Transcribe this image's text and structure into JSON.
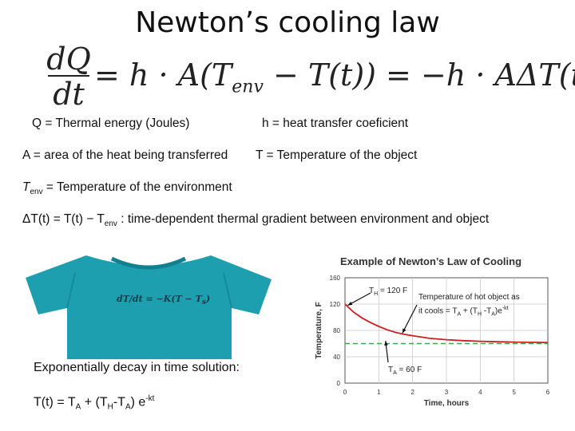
{
  "title": "Newton’s cooling law",
  "equation": {
    "dq": "dQ",
    "dt": "dt",
    "rhs_part1": "= h · A(T",
    "env_sub": "env",
    "rhs_part2": " − T(t)) = −h · AΔT(t)"
  },
  "definitions": {
    "q": "Q = Thermal energy (Joules)",
    "h": "h = heat transfer coeficient",
    "a": "A = area of the heat being transferred",
    "t": "T = Temperature of the  object",
    "tenv_T": "T",
    "tenv_sub": "env",
    "tenv_rest": " = Temperature of the environment",
    "delta_left": "ΔT(t) = T(t) − T",
    "delta_sub": "env",
    "delta_rest": " : time-dependent thermal gradient between environment and object"
  },
  "shirt": {
    "color": "#1e9fb0",
    "eq_lhs": "dT/dt",
    "eq_rhs": "= −K(T − T",
    "eq_sub": "s",
    "eq_end": ")"
  },
  "captions": {
    "decay": "Exponentially decay in time solution:",
    "solution_a": "T(t) = T",
    "solution_a_sub": "A",
    "solution_b": " + (T",
    "solution_b_sub": "H",
    "solution_c": "-T",
    "solution_c_sub": "A",
    "solution_d": ") e",
    "solution_sup": "-kt"
  },
  "chart_data": {
    "type": "line",
    "title": "Example of Newton’s Law of Cooling",
    "xlabel": "Time, hours",
    "ylabel": "Temperature, F",
    "xlim": [
      0,
      6
    ],
    "ylim": [
      0,
      160
    ],
    "x_ticks": [
      "0",
      "1",
      "2",
      "3",
      "4",
      "5",
      "6"
    ],
    "y_ticks": [
      "0",
      "40",
      "80",
      "120",
      "160"
    ],
    "series": [
      {
        "x": [
          0,
          0.25,
          0.5,
          0.75,
          1,
          1.25,
          1.5,
          1.75,
          2,
          2.5,
          3,
          3.5,
          4,
          4.5,
          5,
          5.5,
          6
        ],
        "y": [
          120,
          108,
          99,
          92,
          86,
          81,
          77,
          74,
          72,
          68,
          66,
          64.5,
          63.5,
          62.8,
          62.3,
          61.9,
          61.6
        ],
        "color": "#cc1f1f",
        "style": "solid"
      },
      {
        "x": [
          0,
          6
        ],
        "y": [
          60,
          60
        ],
        "color": "#3aa84a",
        "style": "dashed"
      }
    ],
    "annotations": {
      "th": "T",
      "th_sub": "H",
      "th_rest": " = 120 F",
      "desc1": "Temperature of hot object as",
      "desc2a": "it cools = T",
      "desc2_sub": "A",
      "desc2b": " + (T",
      "desc2_sub2": "H",
      "desc2c": " -T",
      "desc2_sub3": "A",
      "desc2d": ")e",
      "desc2_sup": "-kt",
      "ta": "T",
      "ta_sub": "A",
      "ta_rest": " = 60 F"
    }
  }
}
